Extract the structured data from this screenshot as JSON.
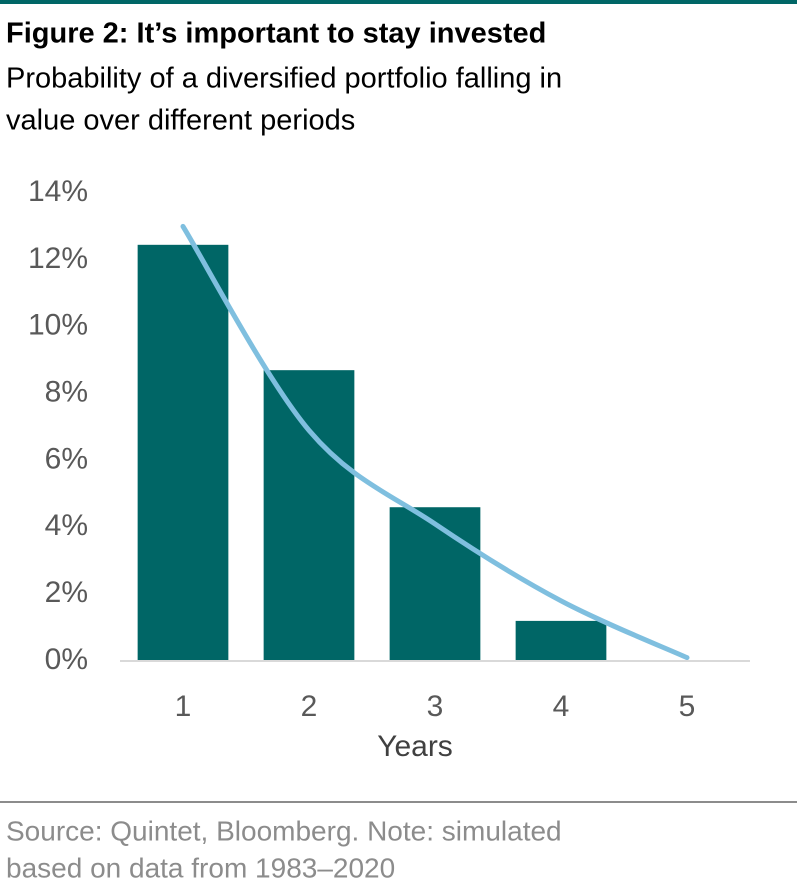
{
  "chart_data": {
    "type": "bar",
    "title": "Figure 2: It’s important to stay invested",
    "subtitle": [
      "Probability of a diversified portfolio falling in",
      "value over different periods"
    ],
    "x_label": "Years",
    "categories": [
      "1",
      "2",
      "3",
      "4",
      "5"
    ],
    "series": [
      {
        "type": "bar",
        "color": "#006666",
        "values": [
          12.45,
          8.7,
          4.6,
          1.2,
          0
        ]
      },
      {
        "type": "line",
        "color": "#7fbfdf",
        "values": [
          13.0,
          6.9,
          4.1,
          1.8,
          0.1
        ]
      }
    ],
    "ylim": [
      0,
      14
    ],
    "yticks": [
      {
        "value": 0,
        "label": "0%"
      },
      {
        "value": 2,
        "label": "2%"
      },
      {
        "value": 4,
        "label": "4%"
      },
      {
        "value": 6,
        "label": "6%"
      },
      {
        "value": 8,
        "label": "8%"
      },
      {
        "value": 10,
        "label": "10%"
      },
      {
        "value": 12,
        "label": "12%"
      },
      {
        "value": 14,
        "label": "14%"
      }
    ],
    "grid": false,
    "source": [
      "Source: Quintet, Bloomberg. Note: simulated",
      "based on data from 1983–2020"
    ]
  }
}
